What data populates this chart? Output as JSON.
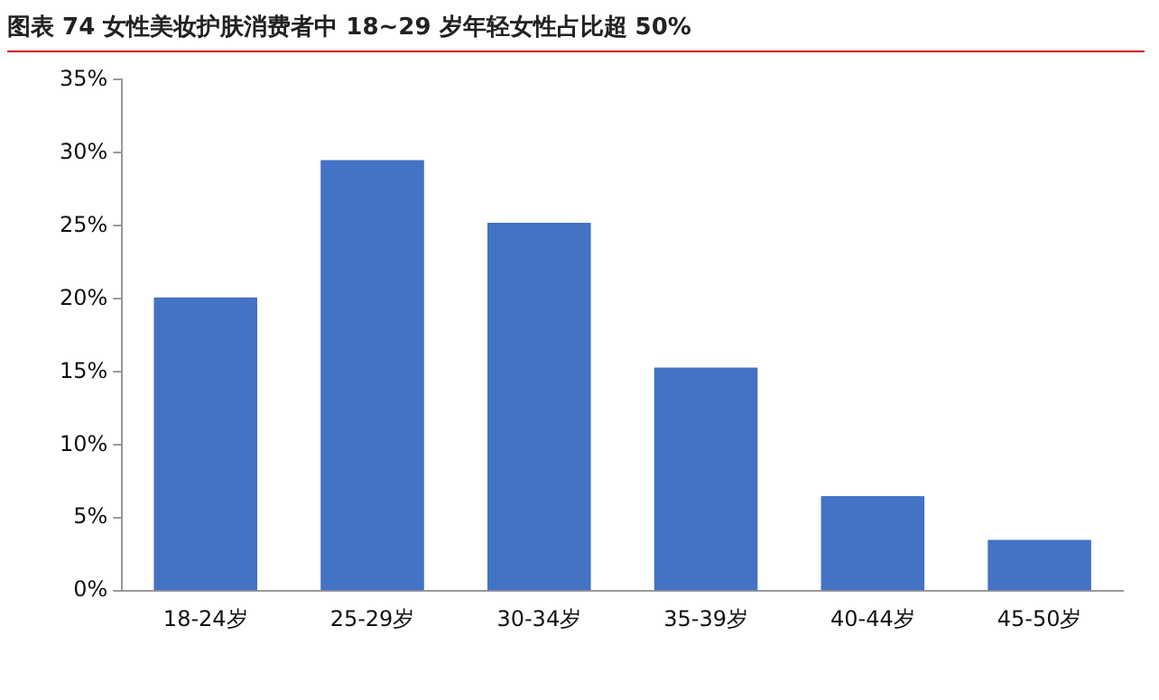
{
  "chart_data": {
    "type": "bar",
    "title": "图表 74  女性美妆护肤消费者中 18~29 岁年轻女性占比超 50%",
    "categories": [
      "18-24岁",
      "25-29岁",
      "30-34岁",
      "35-39岁",
      "40-44岁",
      "45-50岁"
    ],
    "values": [
      20.1,
      29.5,
      25.2,
      15.3,
      6.5,
      3.5
    ],
    "color": "#4472c4",
    "ylim": [
      0,
      35
    ],
    "yticks": [
      {
        "value": 0,
        "label": "0%"
      },
      {
        "value": 5,
        "label": "5%"
      },
      {
        "value": 10,
        "label": "10%"
      },
      {
        "value": 15,
        "label": "15%"
      },
      {
        "value": 20,
        "label": "20%"
      },
      {
        "value": 25,
        "label": "25%"
      },
      {
        "value": 30,
        "label": "30%"
      },
      {
        "value": 35,
        "label": "35%"
      }
    ],
    "grid": false,
    "legend": false
  }
}
